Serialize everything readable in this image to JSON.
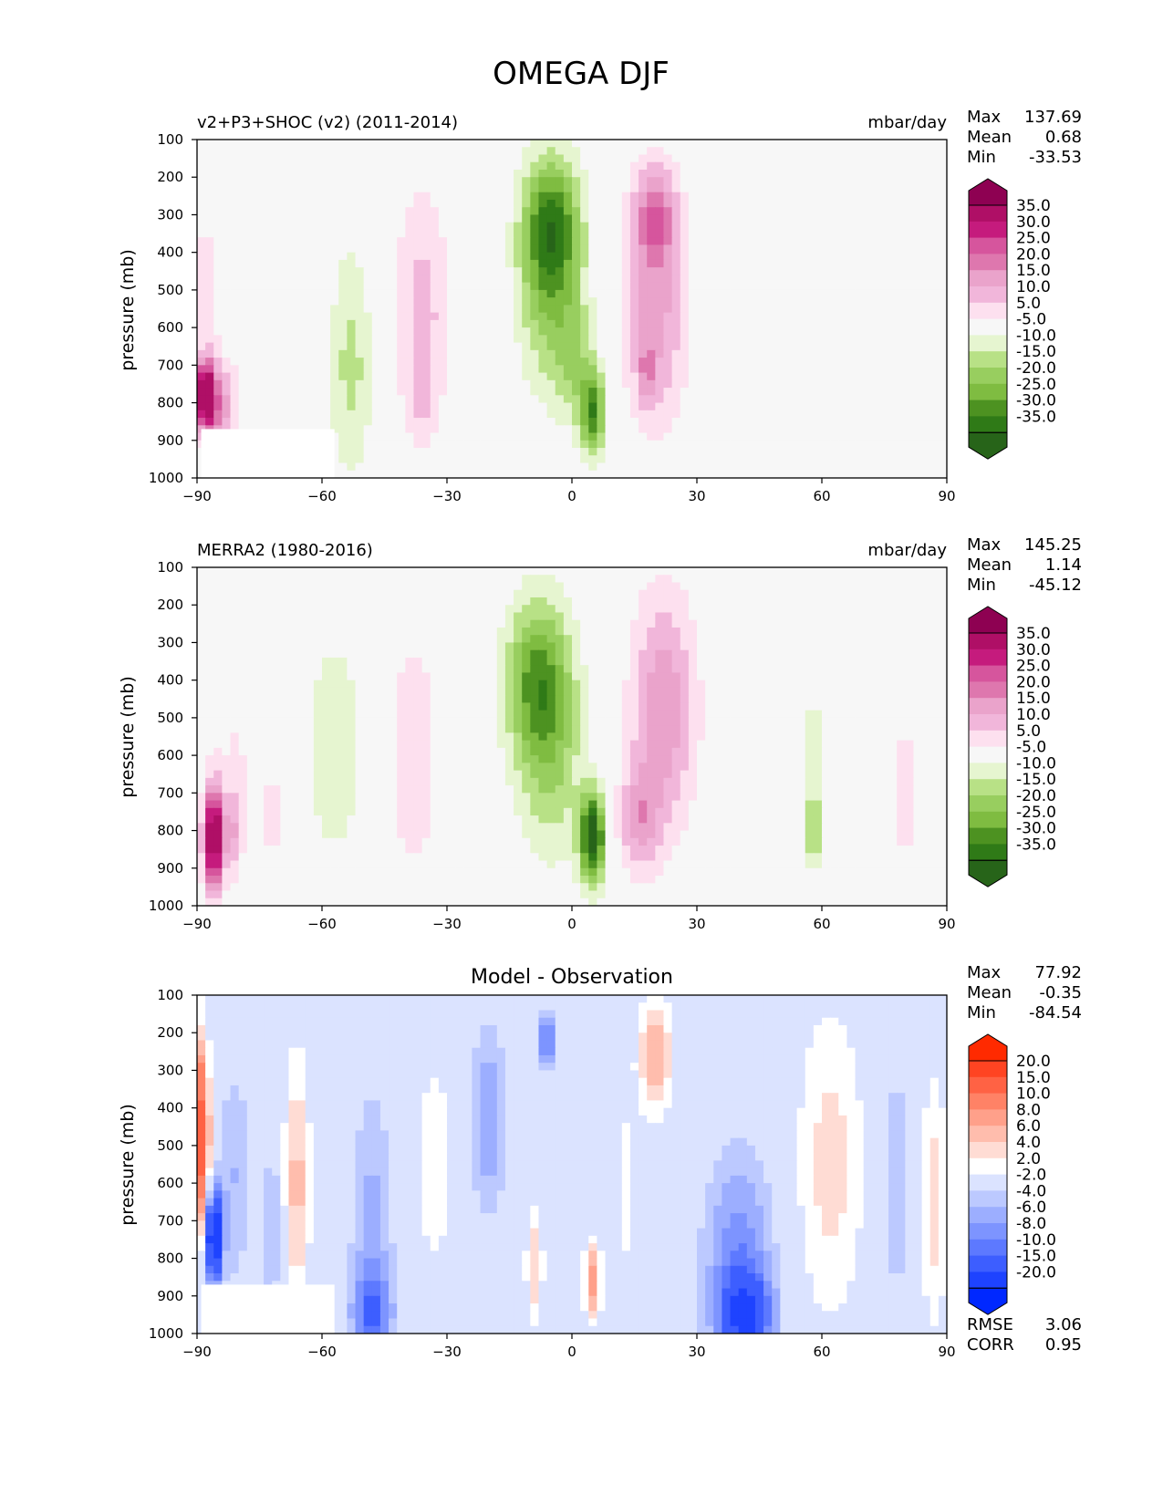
{
  "figure": {
    "title": "OMEGA DJF"
  },
  "chart_data": [
    {
      "type": "heatmap",
      "panel": "model",
      "title_left": "v2+P3+SHOC (v2) (2011-2014)",
      "units": "mbar/day",
      "ylabel": "pressure (mb)",
      "xlim": [
        -90,
        90
      ],
      "ylim": [
        1000,
        100
      ],
      "xticks": [
        "−90",
        "−60",
        "−30",
        "0",
        "30",
        "60",
        "90"
      ],
      "yticks": [
        "100",
        "200",
        "300",
        "400",
        "500",
        "600",
        "700",
        "800",
        "900",
        "1000"
      ],
      "stats": {
        "max_label": "Max",
        "max": "137.69",
        "mean_label": "Mean",
        "mean": "0.68",
        "min_label": "Min",
        "min": "-33.53"
      },
      "colorbar": {
        "labels": [
          "35.0",
          "30.0",
          "25.0",
          "20.0",
          "15.0",
          "10.0",
          "5.0",
          "-5.0",
          "-10.0",
          "-15.0",
          "-20.0",
          "-25.0",
          "-30.0",
          "-35.0"
        ],
        "colors": [
          "#8e0152",
          "#af0f66",
          "#c51b7d",
          "#d6559d",
          "#de77ae",
          "#eaa3cb",
          "#f1b6da",
          "#fde0ef",
          "#f7f7f7",
          "#e6f5d0",
          "#b8e186",
          "#98ce5f",
          "#7fbc41",
          "#4d9221",
          "#2f7a17",
          "#276419"
        ]
      },
      "blobs": [
        {
          "lat": -88,
          "p": 780,
          "wlat": 2.5,
          "wp": 90,
          "v": 45
        },
        {
          "lat": -84,
          "p": 820,
          "wlat": 4,
          "wp": 120,
          "v": 16
        },
        {
          "lat": -88,
          "p": 500,
          "wlat": 4,
          "wp": 250,
          "v": 7
        },
        {
          "lat": -78,
          "p": 450,
          "wlat": 4,
          "wp": 300,
          "v": 4
        },
        {
          "lat": -53,
          "p": 620,
          "wlat": 5,
          "wp": 300,
          "v": -8
        },
        {
          "lat": -53,
          "p": 800,
          "wlat": 6,
          "wp": 250,
          "v": -5
        },
        {
          "lat": -36,
          "p": 560,
          "wlat": 7,
          "wp": 340,
          "v": 12
        },
        {
          "lat": -36,
          "p": 780,
          "wlat": 3,
          "wp": 100,
          "v": 6
        },
        {
          "lat": -5,
          "p": 330,
          "wlat": 7,
          "wp": 190,
          "v": -30
        },
        {
          "lat": -5,
          "p": 560,
          "wlat": 8,
          "wp": 240,
          "v": -14
        },
        {
          "lat": 5,
          "p": 830,
          "wlat": 3,
          "wp": 110,
          "v": -28
        },
        {
          "lat": 1,
          "p": 700,
          "wlat": 5,
          "wp": 150,
          "v": -10
        },
        {
          "lat": 20,
          "p": 300,
          "wlat": 5,
          "wp": 130,
          "v": 18
        },
        {
          "lat": 20,
          "p": 550,
          "wlat": 8,
          "wp": 320,
          "v": 17
        },
        {
          "lat": 18,
          "p": 720,
          "wlat": 2,
          "wp": 80,
          "v": 12
        },
        {
          "lat": 55,
          "p": 700,
          "wlat": 5,
          "wp": 250,
          "v": -5
        },
        {
          "lat": 79,
          "p": 780,
          "wlat": 2,
          "wp": 100,
          "v": 4
        }
      ]
    },
    {
      "type": "heatmap",
      "panel": "observation",
      "title_left": "MERRA2 (1980-2016)",
      "units": "mbar/day",
      "ylabel": "pressure (mb)",
      "xlim": [
        -90,
        90
      ],
      "ylim": [
        1000,
        100
      ],
      "xticks": [
        "−90",
        "−60",
        "−30",
        "0",
        "30",
        "60",
        "90"
      ],
      "yticks": [
        "100",
        "200",
        "300",
        "400",
        "500",
        "600",
        "700",
        "800",
        "900",
        "1000"
      ],
      "stats": {
        "max_label": "Max",
        "max": "145.25",
        "mean_label": "Mean",
        "mean": "1.14",
        "min_label": "Min",
        "min": "-45.12"
      },
      "colorbar": {
        "labels": [
          "35.0",
          "30.0",
          "25.0",
          "20.0",
          "15.0",
          "10.0",
          "5.0",
          "-5.0",
          "-10.0",
          "-15.0",
          "-20.0",
          "-25.0",
          "-30.0",
          "-35.0"
        ],
        "colors": [
          "#8e0152",
          "#af0f66",
          "#c51b7d",
          "#d6559d",
          "#de77ae",
          "#eaa3cb",
          "#f1b6da",
          "#fde0ef",
          "#f7f7f7",
          "#e6f5d0",
          "#b8e186",
          "#98ce5f",
          "#7fbc41",
          "#4d9221",
          "#2f7a17",
          "#276419"
        ]
      },
      "blobs": [
        {
          "lat": -86,
          "p": 820,
          "wlat": 2.5,
          "wp": 140,
          "v": 45
        },
        {
          "lat": -81,
          "p": 800,
          "wlat": 2,
          "wp": 120,
          "v": 12
        },
        {
          "lat": -72,
          "p": 760,
          "wlat": 1.5,
          "wp": 90,
          "v": 14
        },
        {
          "lat": -80,
          "p": 550,
          "wlat": 6,
          "wp": 300,
          "v": 5
        },
        {
          "lat": -57,
          "p": 580,
          "wlat": 7,
          "wp": 300,
          "v": -10
        },
        {
          "lat": -38,
          "p": 600,
          "wlat": 6,
          "wp": 320,
          "v": 10
        },
        {
          "lat": -8,
          "p": 400,
          "wlat": 8,
          "wp": 220,
          "v": -26
        },
        {
          "lat": -5,
          "p": 650,
          "wlat": 8,
          "wp": 260,
          "v": -12
        },
        {
          "lat": 5,
          "p": 820,
          "wlat": 3,
          "wp": 120,
          "v": -40
        },
        {
          "lat": 22,
          "p": 480,
          "wlat": 8,
          "wp": 320,
          "v": 19
        },
        {
          "lat": 16,
          "p": 770,
          "wlat": 5,
          "wp": 140,
          "v": 15
        },
        {
          "lat": 58,
          "p": 650,
          "wlat": 3,
          "wp": 280,
          "v": -8
        },
        {
          "lat": 58,
          "p": 800,
          "wlat": 1.2,
          "wp": 90,
          "v": -16
        },
        {
          "lat": 80,
          "p": 700,
          "wlat": 3,
          "wp": 280,
          "v": 7
        }
      ]
    },
    {
      "type": "heatmap",
      "panel": "difference",
      "title_center": "Model - Observation",
      "ylabel": "pressure (mb)",
      "xlim": [
        -90,
        90
      ],
      "ylim": [
        1000,
        100
      ],
      "xticks": [
        "−90",
        "−60",
        "−30",
        "0",
        "30",
        "60",
        "90"
      ],
      "yticks": [
        "100",
        "200",
        "300",
        "400",
        "500",
        "600",
        "700",
        "800",
        "900",
        "1000"
      ],
      "stats": {
        "max_label": "Max",
        "max": "77.92",
        "mean_label": "Mean",
        "mean": "-0.35",
        "min_label": "Min",
        "min": "-84.54"
      },
      "metrics": {
        "rmse_label": "RMSE",
        "rmse": "3.06",
        "corr_label": "CORR",
        "corr": "0.95"
      },
      "colorbar": {
        "labels": [
          "20.0",
          "15.0",
          "10.0",
          "8.0",
          "6.0",
          "4.0",
          "2.0",
          "-2.0",
          "-4.0",
          "-6.0",
          "-8.0",
          "-10.0",
          "-15.0",
          "-20.0"
        ],
        "colors": [
          "#ff2a00",
          "#ff4422",
          "#ff6244",
          "#ff8266",
          "#ffa08a",
          "#ffbdad",
          "#ffdcd4",
          "#ffffff",
          "#dbe3ff",
          "#bcc9ff",
          "#9caeff",
          "#7d94ff",
          "#5d79ff",
          "#3d5eff",
          "#1e43ff",
          "#0028ff"
        ]
      },
      "blobs": [
        {
          "lat": -89,
          "p": 480,
          "wlat": 2,
          "wp": 250,
          "v": 18
        },
        {
          "lat": -86,
          "p": 740,
          "wlat": 2,
          "wp": 120,
          "v": -22
        },
        {
          "lat": -81,
          "p": 580,
          "wlat": 4,
          "wp": 300,
          "v": -4
        },
        {
          "lat": -72,
          "p": 720,
          "wlat": 2,
          "wp": 200,
          "v": -5
        },
        {
          "lat": -66,
          "p": 600,
          "wlat": 3,
          "wp": 330,
          "v": 7
        },
        {
          "lat": -48,
          "p": 750,
          "wlat": 5,
          "wp": 400,
          "v": -5
        },
        {
          "lat": -48,
          "p": 950,
          "wlat": 5,
          "wp": 120,
          "v": -7
        },
        {
          "lat": -33,
          "p": 550,
          "wlat": 4,
          "wp": 280,
          "v": 4
        },
        {
          "lat": -20,
          "p": 430,
          "wlat": 4,
          "wp": 250,
          "v": -6
        },
        {
          "lat": -6,
          "p": 220,
          "wlat": 2,
          "wp": 80,
          "v": -9
        },
        {
          "lat": -9,
          "p": 820,
          "wlat": 2,
          "wp": 150,
          "v": 6
        },
        {
          "lat": 5,
          "p": 860,
          "wlat": 2,
          "wp": 100,
          "v": 10
        },
        {
          "lat": 20,
          "p": 260,
          "wlat": 4,
          "wp": 160,
          "v": 8
        },
        {
          "lat": 13,
          "p": 620,
          "wlat": 3,
          "wp": 260,
          "v": 3
        },
        {
          "lat": 40,
          "p": 830,
          "wlat": 8,
          "wp": 300,
          "v": -8
        },
        {
          "lat": 42,
          "p": 950,
          "wlat": 6,
          "wp": 100,
          "v": -12
        },
        {
          "lat": 62,
          "p": 550,
          "wlat": 8,
          "wp": 420,
          "v": 5
        },
        {
          "lat": 78,
          "p": 600,
          "wlat": 2,
          "wp": 300,
          "v": -5
        },
        {
          "lat": 87,
          "p": 650,
          "wlat": 3,
          "wp": 350,
          "v": 5
        }
      ]
    }
  ]
}
